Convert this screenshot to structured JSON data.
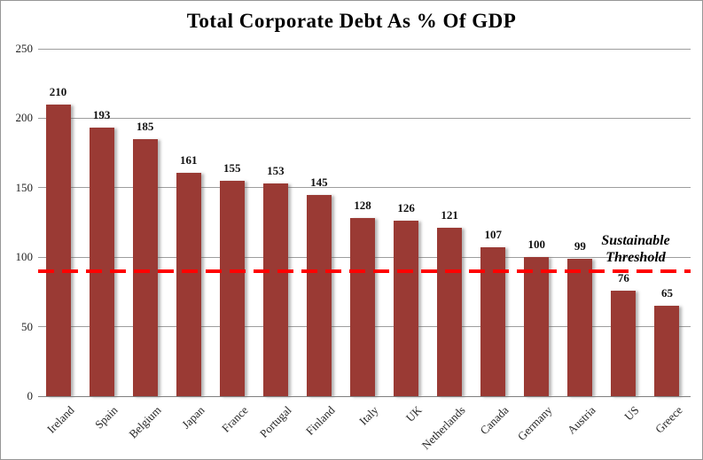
{
  "chart_data": {
    "type": "bar",
    "title": "Total Corporate Debt As % Of  GDP",
    "categories": [
      "Ireland",
      "Spain",
      "Belgium",
      "Japan",
      "France",
      "Portugal",
      "Finland",
      "Italy",
      "UK",
      "Netherlands",
      "Canada",
      "Germany",
      "Austria",
      "US",
      "Greece"
    ],
    "values": [
      210,
      193,
      185,
      161,
      155,
      153,
      145,
      128,
      126,
      121,
      107,
      100,
      99,
      76,
      65
    ],
    "xlabel": "",
    "ylabel": "",
    "ylim": [
      0,
      250
    ],
    "yticks": [
      0,
      50,
      100,
      150,
      200,
      250
    ],
    "grid": true,
    "legend_position": "none",
    "bar_color": "#9A3A34",
    "gridline_color": "#9D9D9D",
    "axis_color": "#808080",
    "threshold": {
      "value": 90,
      "label_line1": "Sustainable",
      "label_line2": "Threshold",
      "line_color": "#FF0000"
    }
  }
}
